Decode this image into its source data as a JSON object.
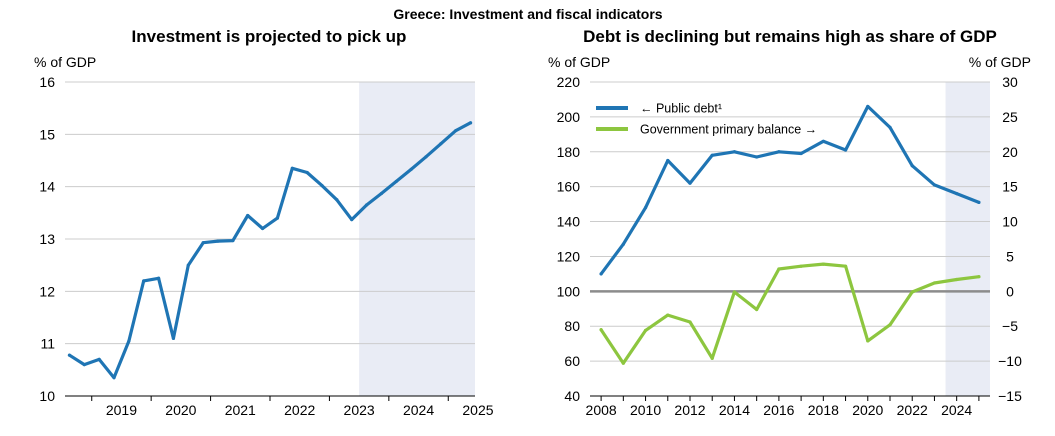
{
  "figure": {
    "supertitle": "Greece: Investment and fiscal indicators"
  },
  "colors": {
    "blue": "#1f75b4",
    "green": "#8dc63f",
    "projection": "#e9ecf5",
    "grid": "#cccccc",
    "zero": "#8c8c8c"
  },
  "chart_data": [
    {
      "type": "line",
      "title": "Investment is projected to pick up",
      "ylabel": "% of GDP",
      "ylim": [
        10,
        16
      ],
      "yticks": [
        10,
        11,
        12,
        13,
        14,
        15,
        16
      ],
      "xlim": [
        2018.55,
        2025.45
      ],
      "xticks": [
        2019,
        2020,
        2021,
        2022,
        2023,
        2024,
        2025
      ],
      "projection_from": 2023.5,
      "series": [
        {
          "color": "#1f75b4",
          "x": [
            2018.625,
            2018.875,
            2019.125,
            2019.375,
            2019.625,
            2019.875,
            2020.125,
            2020.375,
            2020.625,
            2020.875,
            2021.125,
            2021.375,
            2021.625,
            2021.875,
            2022.125,
            2022.375,
            2022.625,
            2022.875,
            2023.125,
            2023.375,
            2023.625,
            2023.875,
            2024.125,
            2024.375,
            2024.625,
            2024.875,
            2025.125,
            2025.375
          ],
          "values": [
            10.78,
            10.6,
            10.7,
            10.35,
            11.05,
            12.2,
            12.25,
            11.1,
            12.5,
            12.93,
            12.96,
            12.97,
            13.45,
            13.2,
            13.4,
            14.35,
            14.27,
            14.02,
            13.75,
            13.37,
            13.65,
            13.87,
            14.1,
            14.33,
            14.57,
            14.82,
            15.07,
            15.22
          ]
        }
      ]
    },
    {
      "type": "line",
      "title": "Debt is declining but remains high as share of GDP",
      "ylabel_left": "% of GDP",
      "ylabel_right": "% of GDP",
      "ylim_left": [
        40,
        220
      ],
      "yticks_left": [
        40,
        60,
        80,
        100,
        120,
        140,
        160,
        180,
        200,
        220
      ],
      "ylim_right": [
        -15,
        30
      ],
      "yticks_right": [
        -15,
        -10,
        -5,
        0,
        5,
        10,
        15,
        20,
        25,
        30
      ],
      "xlim": [
        2007.5,
        2025.5
      ],
      "xticks": [
        2008,
        2010,
        2012,
        2014,
        2016,
        2018,
        2020,
        2022,
        2024
      ],
      "projection_from": 2023.5,
      "legend_position": "top-left",
      "series": [
        {
          "name": "← Public debt¹",
          "axis": "left",
          "color": "#1f75b4",
          "x": [
            2008,
            2009,
            2010,
            2011,
            2012,
            2013,
            2014,
            2015,
            2016,
            2017,
            2018,
            2019,
            2020,
            2021,
            2022,
            2023,
            2024,
            2025
          ],
          "values": [
            110,
            127,
            148,
            175,
            162,
            178,
            180,
            177,
            180,
            179,
            186,
            181,
            206,
            194,
            172,
            161,
            156,
            151
          ]
        },
        {
          "name": "Government primary balance →",
          "axis": "right",
          "color": "#8dc63f",
          "x": [
            2008,
            2009,
            2010,
            2011,
            2012,
            2013,
            2014,
            2015,
            2016,
            2017,
            2018,
            2019,
            2020,
            2021,
            2022,
            2023,
            2024,
            2025
          ],
          "values": [
            -5.5,
            -10.3,
            -5.6,
            -3.4,
            -4.4,
            -9.6,
            -0.1,
            -2.6,
            3.2,
            3.6,
            3.9,
            3.6,
            -7.1,
            -4.8,
            -0.1,
            1.2,
            1.7,
            2.1
          ]
        }
      ]
    }
  ]
}
